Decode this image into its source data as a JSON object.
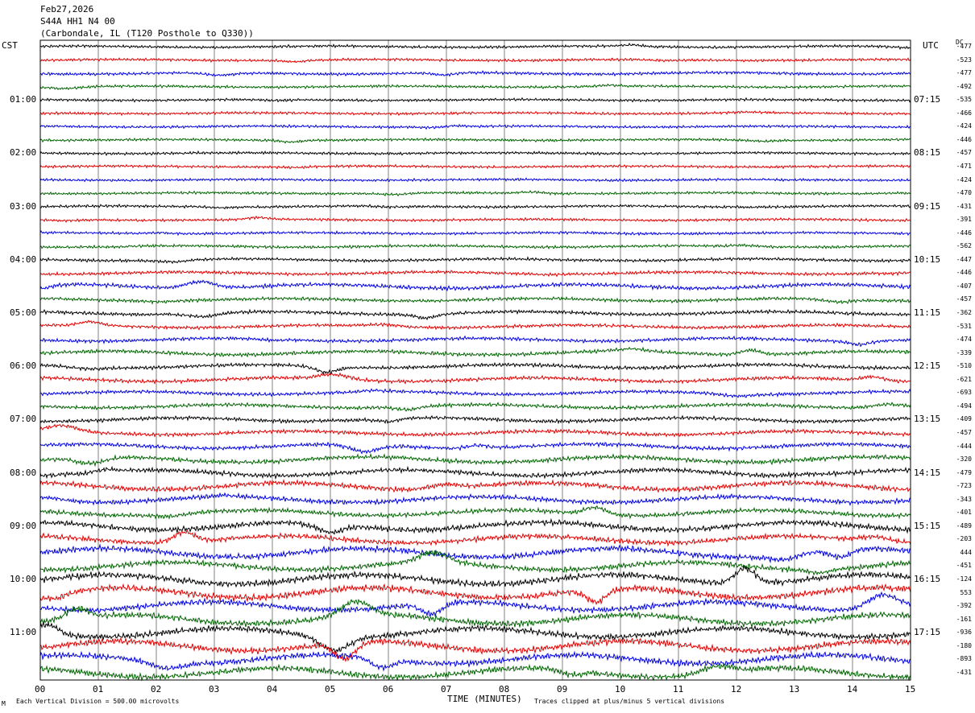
{
  "header": {
    "date": "Feb27,2026",
    "station": "S44A HH1 N4 00",
    "location": "(Carbondale, IL (T120 Posthole to Q330))"
  },
  "left_timezone": "CST",
  "right_timezone": "UTC",
  "dc_label": "DC",
  "footer": {
    "left_mark": "M",
    "scale_note": "Each Vertical Division =  500.00 microvolts",
    "clip_note": "Traces clipped at plus/minus 5 vertical divisions"
  },
  "colors": {
    "black": "#000000",
    "red": "#e00000",
    "blue": "#0000e0",
    "green": "#006400",
    "grid": "#808080"
  },
  "chart_data": {
    "type": "line",
    "title": "S44A HH1 N4 00",
    "xlabel": "TIME (MINUTES)",
    "ylabel": "",
    "x_ticks": [
      "00",
      "01",
      "02",
      "03",
      "04",
      "05",
      "06",
      "07",
      "08",
      "09",
      "10",
      "11",
      "12",
      "13",
      "14",
      "15"
    ],
    "xlim": [
      0,
      15
    ],
    "trace_count": 48,
    "trace_color_cycle": [
      "black",
      "red",
      "blue",
      "green"
    ],
    "left_hour_labels": [
      "01:00",
      "02:00",
      "03:00",
      "04:00",
      "05:00",
      "06:00",
      "07:00",
      "08:00",
      "09:00",
      "10:00",
      "11:00"
    ],
    "right_hour_labels": [
      "07:15",
      "08:15",
      "09:15",
      "10:15",
      "11:15",
      "12:15",
      "13:15",
      "14:15",
      "15:15",
      "16:15",
      "17:15"
    ],
    "hour_label_trace_index": [
      4,
      8,
      12,
      16,
      20,
      24,
      28,
      32,
      36,
      40,
      44
    ],
    "dc_offsets": [
      -477,
      -523,
      -477,
      -492,
      -535,
      -466,
      -424,
      -446,
      -457,
      -471,
      -424,
      -470,
      -431,
      -391,
      -446,
      -562,
      -447,
      -446,
      -407,
      -457,
      -362,
      -531,
      -474,
      -339,
      -510,
      -621,
      -693,
      -494,
      -409,
      -457,
      -444,
      -320,
      -479,
      -723,
      -343,
      -401,
      -489,
      -203,
      444,
      -451,
      -124,
      553,
      -392,
      -161,
      -936,
      -180,
      -893,
      -431
    ],
    "trace_activity": [
      0.7,
      0.6,
      0.9,
      0.6,
      0.5,
      0.5,
      0.5,
      0.5,
      0.5,
      0.5,
      0.5,
      0.5,
      0.6,
      0.6,
      0.6,
      0.8,
      1.0,
      1.2,
      2.2,
      1.4,
      1.6,
      1.4,
      1.6,
      2.0,
      1.8,
      2.0,
      1.6,
      1.8,
      2.0,
      2.0,
      2.4,
      3.0,
      3.2,
      3.8,
      3.2,
      3.0,
      4.2,
      3.8,
      4.8,
      4.2,
      5.2,
      5.6,
      4.6,
      5.0,
      4.8,
      5.4,
      4.8,
      5.0
    ],
    "grid": true
  }
}
